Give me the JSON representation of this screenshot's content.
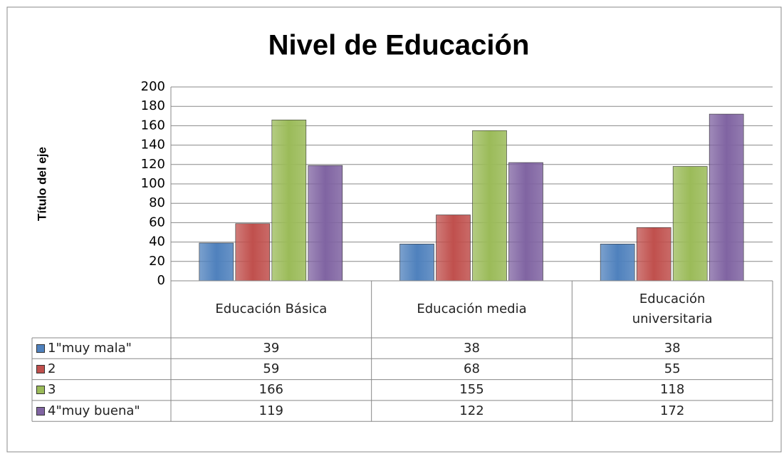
{
  "chart_data": {
    "type": "bar",
    "title": "Nivel de Educación",
    "y_axis_label": "Título del eje",
    "categories": [
      "Educación Básica",
      "Educación media",
      "Educación universitaria"
    ],
    "series": [
      {
        "name": "1\"muy mala\"",
        "color": "#4f81bd",
        "values": [
          39,
          38,
          38
        ]
      },
      {
        "name": "2",
        "color": "#c0504d",
        "values": [
          59,
          68,
          55
        ]
      },
      {
        "name": "3",
        "color": "#9bbb59",
        "values": [
          166,
          155,
          118
        ]
      },
      {
        "name": "4\"muy buena\"",
        "color": "#8064a2",
        "values": [
          119,
          122,
          172
        ]
      }
    ],
    "ylim": [
      0,
      200
    ],
    "yticks": [
      0,
      20,
      40,
      60,
      80,
      100,
      120,
      140,
      160,
      180,
      200
    ],
    "grid": true
  }
}
